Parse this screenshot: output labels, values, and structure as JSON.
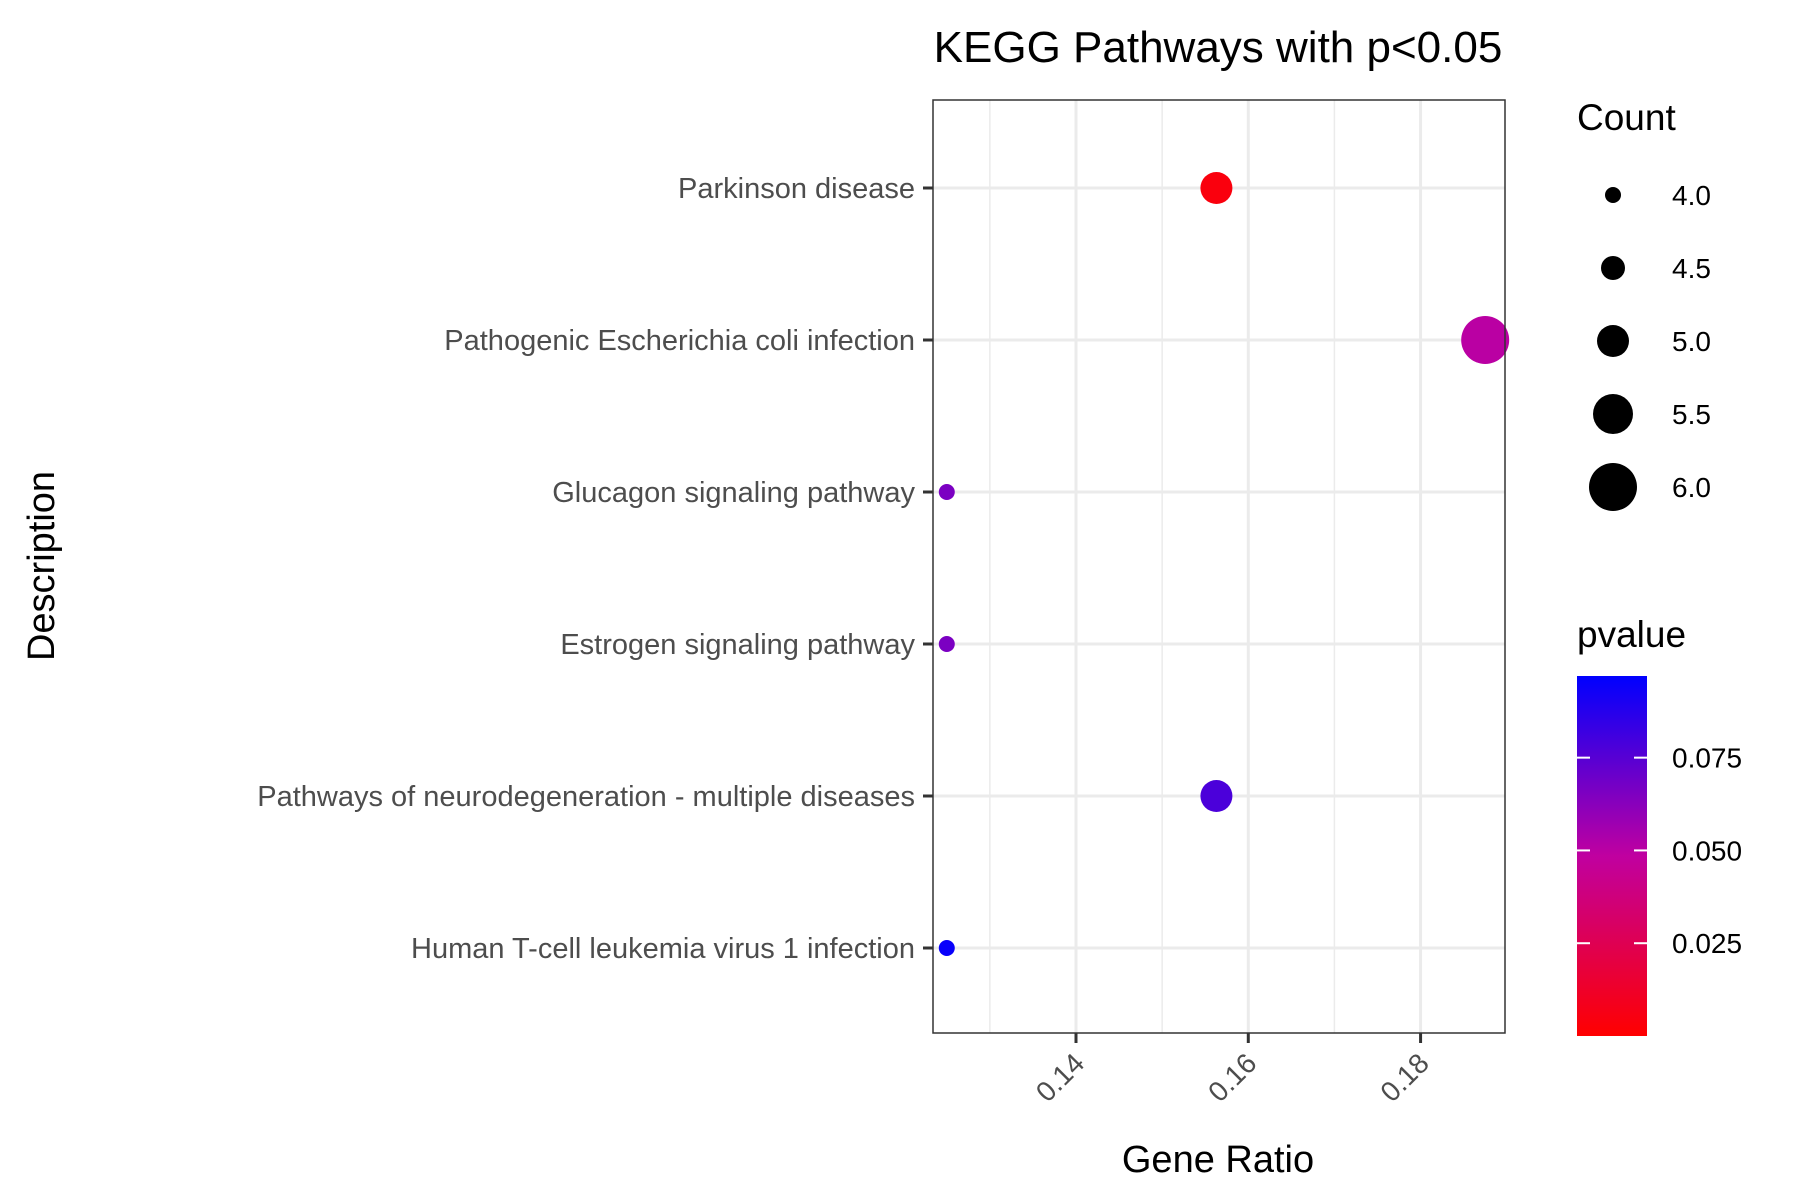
{
  "chart_data": {
    "type": "scatter",
    "title": "KEGG Pathways with p<0.05",
    "xlabel": "Gene Ratio",
    "ylabel": "Description",
    "x_ticks": [
      "0.14",
      "0.16",
      "0.18"
    ],
    "x_tick_values": [
      0.14,
      0.16,
      0.18
    ],
    "xlim": [
      0.1234,
      0.1898
    ],
    "grid": true,
    "categories": [
      "Parkinson disease",
      "Pathogenic Escherichia coli infection",
      "Glucagon signaling pathway",
      "Estrogen signaling pathway",
      "Pathways of neurodegeneration - multiple diseases",
      "Human T-cell leukemia virus 1 infection"
    ],
    "points": [
      {
        "category": "Parkinson disease",
        "gene_ratio": 0.1563,
        "count": 5,
        "pvalue": 0.004
      },
      {
        "category": "Pathogenic Escherichia coli infection",
        "gene_ratio": 0.1875,
        "count": 6,
        "pvalue": 0.05
      },
      {
        "category": "Glucagon signaling pathway",
        "gene_ratio": 0.125,
        "count": 4,
        "pvalue": 0.066
      },
      {
        "category": "Estrogen signaling pathway",
        "gene_ratio": 0.125,
        "count": 4,
        "pvalue": 0.066
      },
      {
        "category": "Pathways of neurodegeneration - multiple diseases",
        "gene_ratio": 0.1563,
        "count": 5,
        "pvalue": 0.078
      },
      {
        "category": "Human T-cell leukemia virus 1 infection",
        "gene_ratio": 0.125,
        "count": 4,
        "pvalue": 0.095
      }
    ],
    "size_legend": {
      "title": "Count",
      "labels": [
        "4.0",
        "4.5",
        "5.0",
        "5.5",
        "6.0"
      ],
      "values": [
        4.0,
        4.5,
        5.0,
        5.5,
        6.0
      ]
    },
    "color_legend": {
      "title": "pvalue",
      "labels": [
        "0.075",
        "0.050",
        "0.025"
      ],
      "values": [
        0.075,
        0.05,
        0.025
      ],
      "range": [
        0.0,
        0.097
      ],
      "low_color": "#ff0000",
      "high_color": "#0000ff"
    },
    "legend_position": "right"
  }
}
